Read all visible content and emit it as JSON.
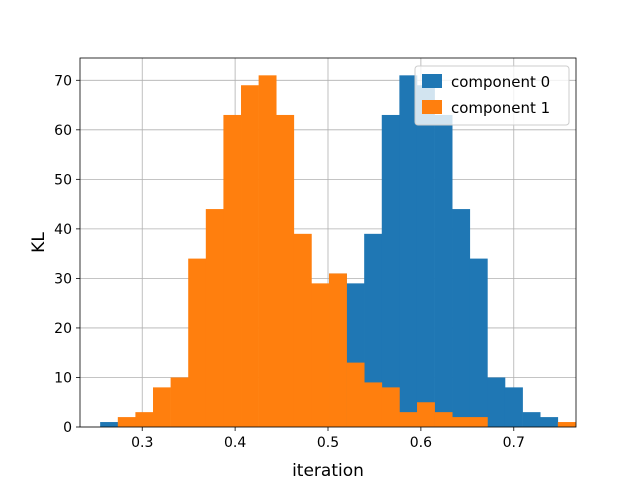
{
  "chart_data": {
    "type": "bar",
    "title": "",
    "xlabel": "iteration",
    "ylabel": "KL",
    "xlim": [
      0.233,
      0.767
    ],
    "ylim": [
      0,
      74.5
    ],
    "xticks": [
      0.3,
      0.4,
      0.5,
      0.6,
      0.7
    ],
    "xtick_labels": [
      "0.3",
      "0.4",
      "0.5",
      "0.6",
      "0.7"
    ],
    "yticks": [
      0,
      10,
      20,
      30,
      40,
      50,
      60,
      70
    ],
    "ytick_labels": [
      "0",
      "10",
      "20",
      "30",
      "40",
      "50",
      "60",
      "70"
    ],
    "grid": true,
    "legend_position": "top-right",
    "series": [
      {
        "name": "component 0",
        "color": "#1f77b4",
        "bin_width": 0.01895,
        "bin_start": 0.2547,
        "values": [
          1,
          0,
          0,
          0,
          0,
          0,
          0,
          0,
          0,
          0,
          0,
          0,
          0,
          31,
          29,
          39,
          63,
          71,
          69,
          63,
          44,
          34,
          10,
          8,
          3,
          2
        ]
      },
      {
        "name": "component 1",
        "color": "#ff7f0e",
        "bin_width": 0.01895,
        "bin_start": 0.2737,
        "values": [
          2,
          3,
          8,
          10,
          34,
          44,
          63,
          69,
          71,
          63,
          39,
          29,
          31,
          13,
          9,
          8,
          3,
          5,
          3,
          2,
          2,
          0,
          0,
          0,
          0,
          1
        ]
      }
    ]
  }
}
